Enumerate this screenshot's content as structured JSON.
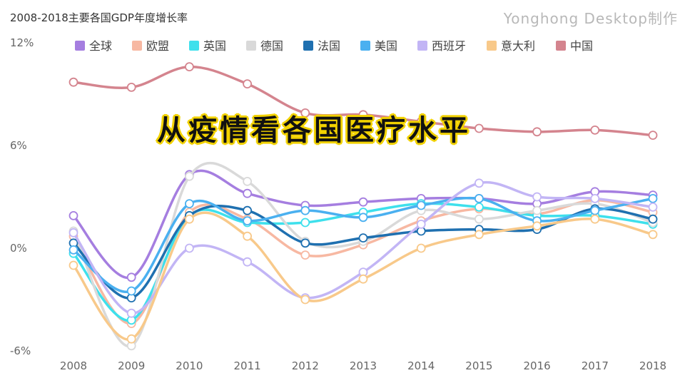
{
  "header": {
    "title": "2008-2018主要各国GDP年度增长率",
    "watermark": "Yonghong Desktop制作"
  },
  "overlay": {
    "text": "从疫情看各国医疗水平"
  },
  "chart_data": {
    "type": "line",
    "title": "2008-2018主要各国GDP年度增长率",
    "xlabel": "",
    "ylabel": "",
    "x": [
      "2008",
      "2009",
      "2010",
      "2011",
      "2012",
      "2013",
      "2014",
      "2015",
      "2016",
      "2017",
      "2018"
    ],
    "ylim": [
      -6,
      12
    ],
    "yticks": [
      -6,
      0,
      6,
      12
    ],
    "ytick_labels": [
      "-6%",
      "0%",
      "6%",
      "12%"
    ],
    "grid": false,
    "legend_position": "top",
    "series": [
      {
        "name": "全球",
        "color": "#a57ee0",
        "values": [
          1.9,
          -1.7,
          4.3,
          3.2,
          2.5,
          2.7,
          2.9,
          2.9,
          2.6,
          3.3,
          3.1
        ]
      },
      {
        "name": "欧盟",
        "color": "#f7b8a2",
        "values": [
          0.7,
          -4.4,
          2.1,
          1.7,
          -0.4,
          0.2,
          1.6,
          2.3,
          2.0,
          2.8,
          2.1
        ]
      },
      {
        "name": "英国",
        "color": "#3ee0ec",
        "values": [
          -0.3,
          -4.2,
          1.9,
          1.5,
          1.5,
          2.1,
          2.6,
          2.4,
          1.9,
          1.9,
          1.4
        ]
      },
      {
        "name": "德国",
        "color": "#d9d9d9",
        "values": [
          1.0,
          -5.7,
          4.2,
          3.9,
          0.4,
          0.4,
          2.2,
          1.7,
          2.2,
          2.6,
          1.5
        ]
      },
      {
        "name": "法国",
        "color": "#1f70b0",
        "values": [
          0.3,
          -2.9,
          1.9,
          2.2,
          0.3,
          0.6,
          1.0,
          1.1,
          1.1,
          2.3,
          1.7
        ]
      },
      {
        "name": "美国",
        "color": "#4ab0f0",
        "values": [
          -0.1,
          -2.5,
          2.6,
          1.6,
          2.2,
          1.8,
          2.5,
          2.9,
          1.6,
          2.2,
          2.9
        ]
      },
      {
        "name": "西班牙",
        "color": "#c2b5f5",
        "values": [
          0.9,
          -3.8,
          0.0,
          -0.8,
          -2.9,
          -1.4,
          1.4,
          3.8,
          3.0,
          2.9,
          2.4
        ]
      },
      {
        "name": "意大利",
        "color": "#f8c98a",
        "values": [
          -1.0,
          -5.3,
          1.7,
          0.7,
          -3.0,
          -1.8,
          0.0,
          0.8,
          1.3,
          1.7,
          0.8
        ]
      },
      {
        "name": "中国",
        "color": "#d4848e",
        "values": [
          9.7,
          9.4,
          10.6,
          9.6,
          7.9,
          7.8,
          7.4,
          7.0,
          6.8,
          6.9,
          6.6
        ]
      }
    ]
  }
}
